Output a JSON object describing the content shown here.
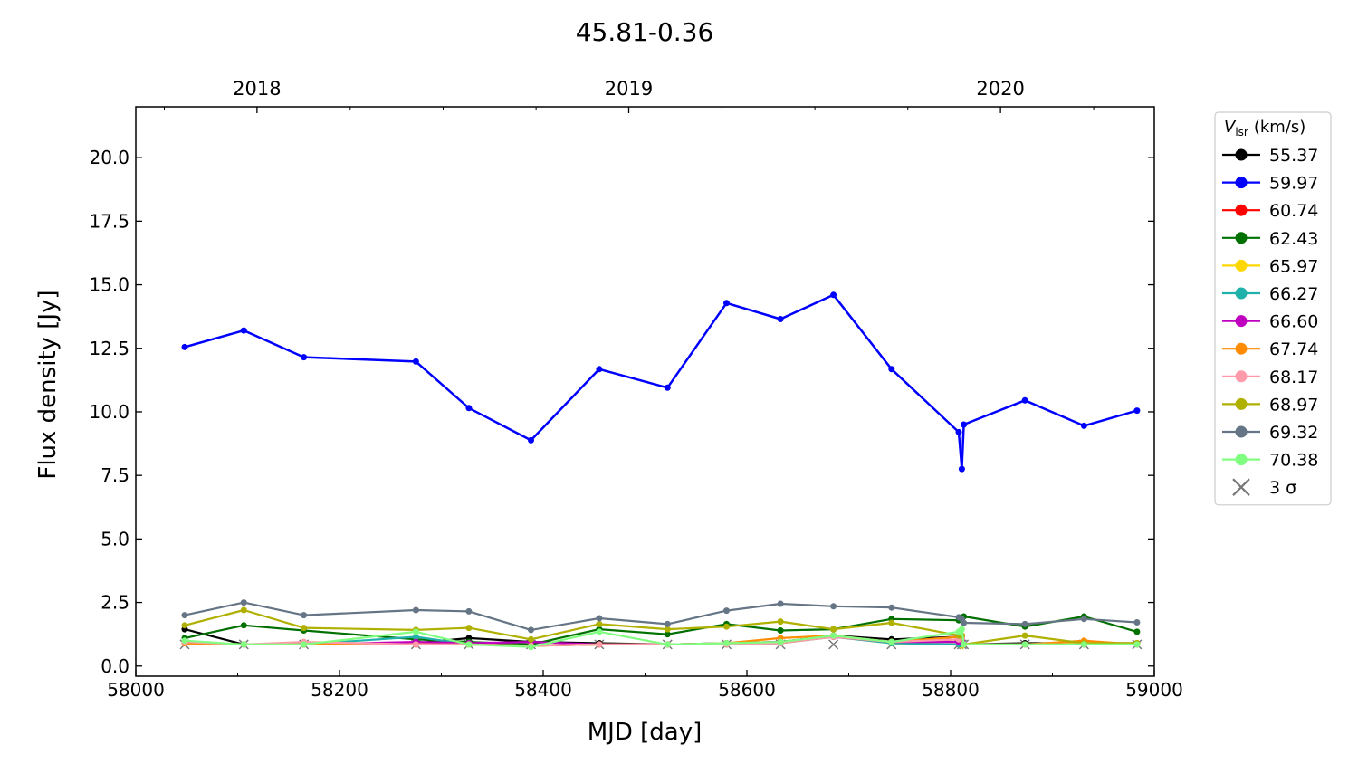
{
  "chart_data": {
    "type": "line",
    "title": "45.81-0.36",
    "xlabel": "MJD [day]",
    "ylabel": "Flux density [Jy]",
    "xlim": [
      58000,
      59000
    ],
    "ylim": [
      -0.4,
      22
    ],
    "x_ticks": [
      58000,
      58200,
      58400,
      58600,
      58800,
      59000
    ],
    "x_tick_labels": [
      "58000",
      "58200",
      "58400",
      "58600",
      "58800",
      "59000"
    ],
    "y_ticks": [
      0,
      2.5,
      5,
      7.5,
      10,
      12.5,
      15,
      17.5,
      20
    ],
    "y_tick_labels": [
      "0.0",
      "2.5",
      "5.0",
      "7.5",
      "10.0",
      "12.5",
      "15.0",
      "17.5",
      "20.0"
    ],
    "top_axis": {
      "ticks": [
        58119,
        58484,
        58849
      ],
      "labels": [
        "2018",
        "2019",
        "2020"
      ]
    },
    "legend": {
      "title": "V",
      "title_sub": "lsr",
      "title_unit": "(km/s)",
      "placement": "outside-right",
      "sigma_label": "3 σ"
    },
    "grid": false,
    "x": [
      58048,
      58106,
      58165,
      58275,
      58327,
      58388,
      58455,
      58522,
      58580,
      58633,
      58685,
      58742,
      58808,
      58811,
      58813,
      58873,
      58931,
      58983
    ],
    "series": [
      {
        "name": "55.37",
        "color": "#000000",
        "values": [
          1.45,
          0.85,
          0.85,
          0.9,
          1.1,
          0.95,
          0.9,
          0.85,
          0.9,
          0.95,
          1.2,
          1.05,
          1.15,
          1.2,
          0.85,
          0.9,
          0.9,
          0.9
        ]
      },
      {
        "name": "59.97",
        "color": "#0000ff",
        "values": [
          12.55,
          13.2,
          12.15,
          11.98,
          10.15,
          8.88,
          11.68,
          10.95,
          14.28,
          13.65,
          14.6,
          11.68,
          9.2,
          7.75,
          9.5,
          10.45,
          9.45,
          10.05
        ]
      },
      {
        "name": "60.74",
        "color": "#ff0000",
        "values": [
          0.9,
          0.85,
          0.85,
          0.85,
          0.85,
          0.8,
          0.85,
          0.85,
          0.85,
          0.95,
          1.15,
          0.95,
          1.05,
          1.1,
          0.85,
          0.85,
          0.85,
          0.85
        ]
      },
      {
        "name": "62.43",
        "color": "#007000",
        "values": [
          1.1,
          1.6,
          1.4,
          1.05,
          0.95,
          0.85,
          1.45,
          1.25,
          1.65,
          1.4,
          1.45,
          1.85,
          1.8,
          1.8,
          1.95,
          1.55,
          1.95,
          1.35
        ]
      },
      {
        "name": "65.97",
        "color": "#ffd700",
        "values": [
          0.9,
          0.85,
          0.85,
          0.9,
          0.85,
          0.8,
          0.85,
          0.85,
          0.85,
          0.9,
          1.15,
          0.9,
          0.85,
          0.8,
          0.85,
          0.85,
          0.9,
          0.9
        ]
      },
      {
        "name": "66.27",
        "color": "#20b2aa",
        "values": [
          0.95,
          0.85,
          0.85,
          1.15,
          0.85,
          0.8,
          0.85,
          0.85,
          0.85,
          0.9,
          1.15,
          0.9,
          0.85,
          0.85,
          0.85,
          0.85,
          0.85,
          0.85
        ]
      },
      {
        "name": "66.60",
        "color": "#c000c0",
        "values": [
          0.95,
          0.85,
          0.85,
          0.95,
          0.9,
          0.95,
          0.85,
          0.85,
          0.9,
          0.95,
          1.15,
          0.95,
          0.95,
          1.0,
          0.85,
          0.85,
          0.85,
          0.85
        ]
      },
      {
        "name": "67.74",
        "color": "#ff8c00",
        "values": [
          0.9,
          0.85,
          0.85,
          0.85,
          0.85,
          0.8,
          0.85,
          0.85,
          0.9,
          1.1,
          1.2,
          0.95,
          1.15,
          1.2,
          0.85,
          0.85,
          1.0,
          0.85
        ]
      },
      {
        "name": "68.17",
        "color": "#ff9aaa",
        "values": [
          0.95,
          0.85,
          0.95,
          0.85,
          0.85,
          0.8,
          0.85,
          0.85,
          0.85,
          0.9,
          1.15,
          0.95,
          1.05,
          1.1,
          0.85,
          0.85,
          0.85,
          0.85
        ]
      },
      {
        "name": "68.97",
        "color": "#b0b000",
        "values": [
          1.6,
          2.2,
          1.5,
          1.42,
          1.5,
          1.05,
          1.65,
          1.45,
          1.55,
          1.75,
          1.45,
          1.7,
          1.2,
          1.2,
          0.85,
          1.2,
          0.9,
          0.9
        ]
      },
      {
        "name": "69.32",
        "color": "#657585",
        "values": [
          2.0,
          2.5,
          2.0,
          2.2,
          2.15,
          1.42,
          1.88,
          1.65,
          2.18,
          2.45,
          2.35,
          2.3,
          1.92,
          1.85,
          1.7,
          1.65,
          1.85,
          1.72
        ]
      },
      {
        "name": "70.38",
        "color": "#80ff80",
        "values": [
          1.0,
          0.85,
          0.85,
          1.35,
          0.85,
          0.75,
          1.35,
          0.85,
          0.9,
          0.95,
          1.2,
          0.95,
          1.35,
          1.45,
          0.85,
          0.85,
          0.85,
          0.85
        ]
      }
    ]
  }
}
